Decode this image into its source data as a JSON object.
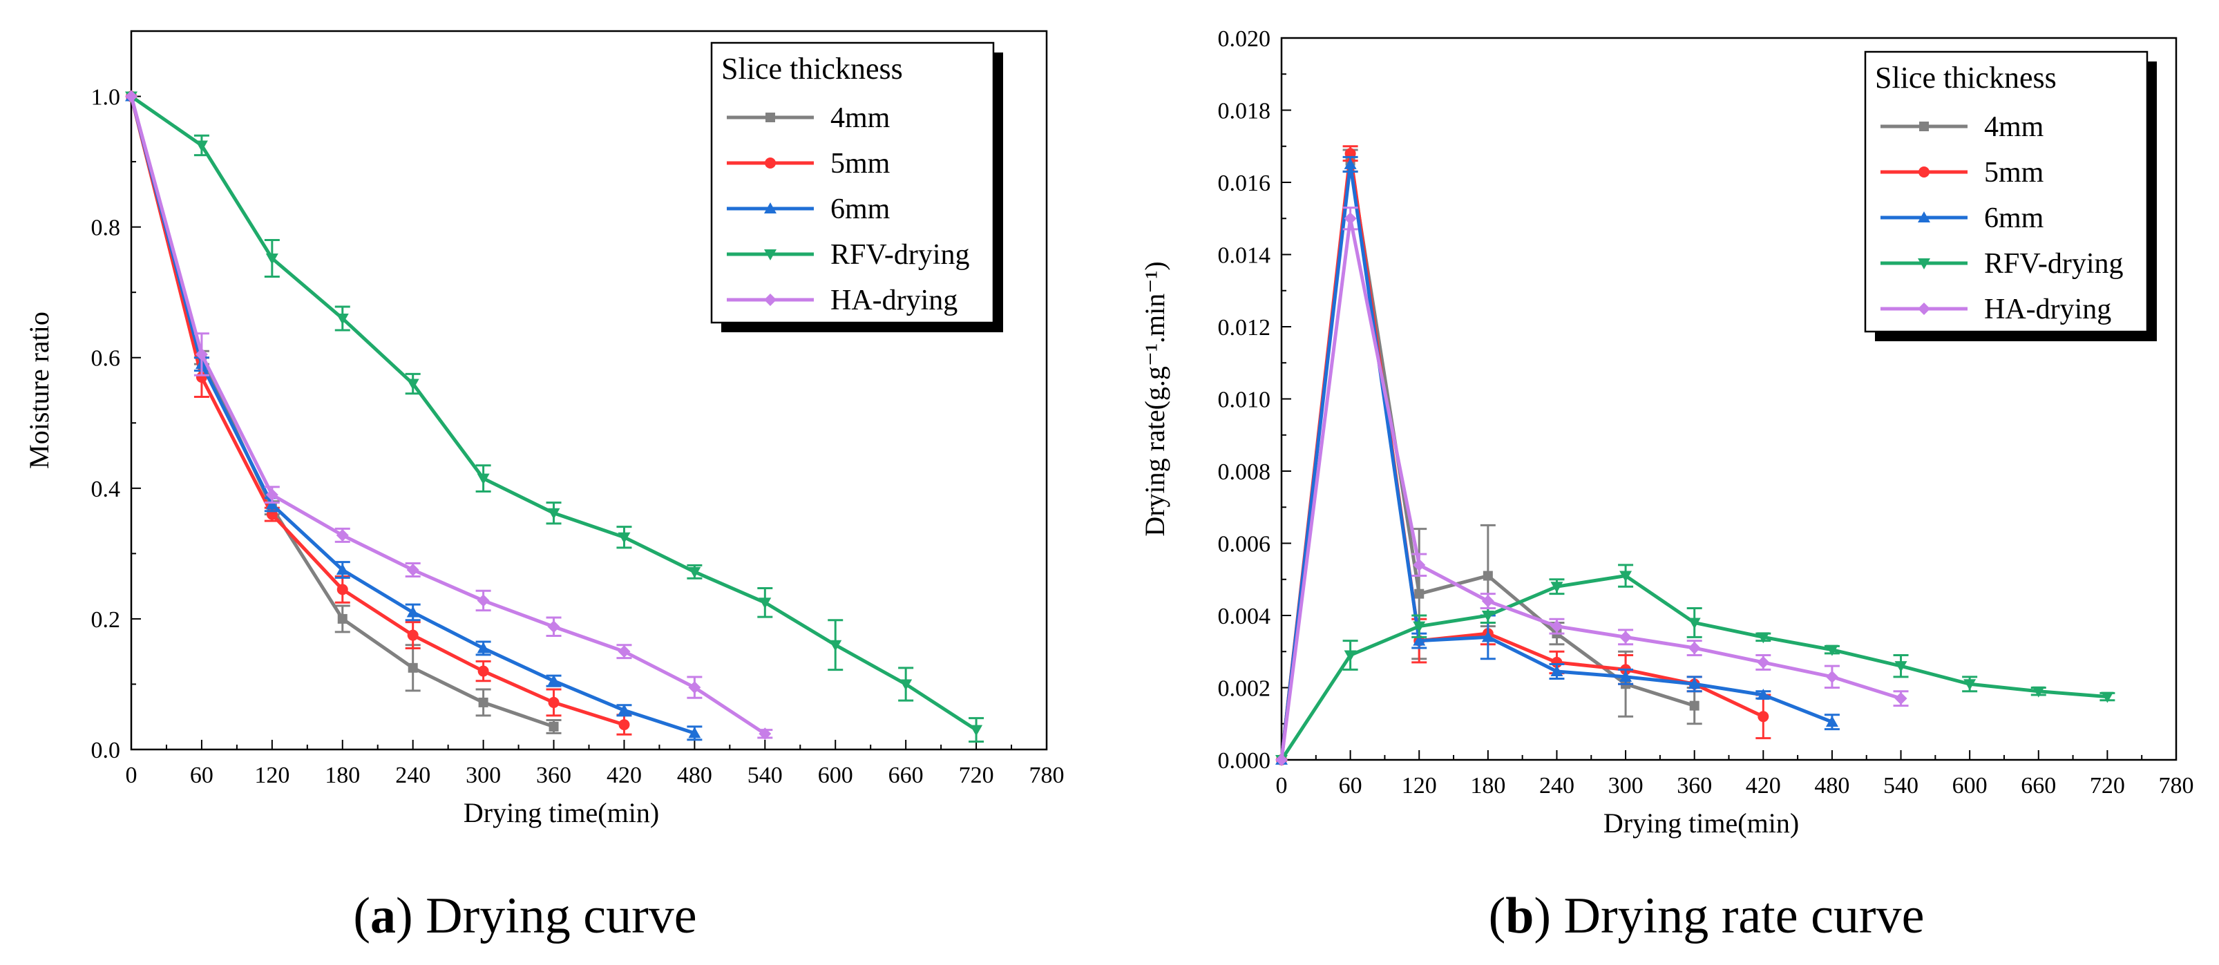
{
  "chart_data": [
    {
      "type": "line",
      "panel": "a",
      "caption_letter": "a",
      "caption_text": "Drying curve",
      "xlabel": "Drying time(min)",
      "ylabel": "Moisture ratio",
      "xlim": [
        0,
        780
      ],
      "ylim": [
        0,
        1.1
      ],
      "xticks": [
        "0",
        "60",
        "120",
        "180",
        "240",
        "300",
        "360",
        "420",
        "480",
        "540",
        "600",
        "660",
        "720",
        "780"
      ],
      "yticks": [
        "0.0",
        "0.2",
        "0.4",
        "0.6",
        "0.8",
        "1.0"
      ],
      "legend_title": "Slice thickness",
      "legend_position": "top-right",
      "series": [
        {
          "name": "4mm",
          "color": "#808080",
          "marker": "square",
          "x": [
            0,
            60,
            120,
            180,
            240,
            300,
            360
          ],
          "y": [
            1.0,
            0.6,
            0.37,
            0.2,
            0.125,
            0.072,
            0.035
          ],
          "err": [
            0,
            0.01,
            0.01,
            0.02,
            0.035,
            0.02,
            0.01
          ]
        },
        {
          "name": "5mm",
          "color": "#ff3333",
          "marker": "circle",
          "x": [
            0,
            60,
            120,
            180,
            240,
            300,
            360,
            420
          ],
          "y": [
            1.0,
            0.57,
            0.36,
            0.245,
            0.175,
            0.12,
            0.072,
            0.038
          ],
          "err": [
            0,
            0.03,
            0.01,
            0.02,
            0.02,
            0.015,
            0.02,
            0.015
          ]
        },
        {
          "name": "6mm",
          "color": "#1f6fd6",
          "marker": "triangle-up",
          "x": [
            0,
            60,
            120,
            180,
            240,
            300,
            360,
            420,
            480
          ],
          "y": [
            1.0,
            0.59,
            0.375,
            0.275,
            0.21,
            0.155,
            0.105,
            0.06,
            0.025
          ],
          "err": [
            0,
            0.01,
            0.01,
            0.012,
            0.012,
            0.01,
            0.008,
            0.008,
            0.01
          ]
        },
        {
          "name": "RFV-drying",
          "color": "#1faa6a",
          "marker": "triangle-down",
          "x": [
            0,
            60,
            120,
            180,
            240,
            300,
            360,
            420,
            480,
            540,
            600,
            660,
            720
          ],
          "y": [
            1.0,
            0.925,
            0.752,
            0.66,
            0.56,
            0.415,
            0.362,
            0.325,
            0.272,
            0.225,
            0.16,
            0.1,
            0.03
          ],
          "err": [
            0,
            0.015,
            0.028,
            0.018,
            0.015,
            0.02,
            0.016,
            0.016,
            0.01,
            0.022,
            0.038,
            0.025,
            0.018
          ]
        },
        {
          "name": "HA-drying",
          "color": "#c77ee8",
          "marker": "diamond",
          "x": [
            0,
            60,
            120,
            180,
            240,
            300,
            360,
            420,
            480,
            540
          ],
          "y": [
            1.0,
            0.605,
            0.39,
            0.328,
            0.275,
            0.228,
            0.188,
            0.15,
            0.095,
            0.024
          ],
          "err": [
            0,
            0.032,
            0.012,
            0.01,
            0.01,
            0.015,
            0.014,
            0.01,
            0.016,
            0.006
          ]
        }
      ]
    },
    {
      "type": "line",
      "panel": "b",
      "caption_letter": "b",
      "caption_text": "Drying rate curve",
      "xlabel": "Drying time(min)",
      "ylabel": "Drying rate(g.g⁻¹.min⁻¹)",
      "xlim": [
        0,
        780
      ],
      "ylim": [
        0,
        0.02
      ],
      "xticks": [
        "0",
        "60",
        "120",
        "180",
        "240",
        "300",
        "360",
        "420",
        "480",
        "540",
        "600",
        "660",
        "720",
        "780"
      ],
      "yticks": [
        "0.000",
        "0.002",
        "0.004",
        "0.006",
        "0.008",
        "0.010",
        "0.012",
        "0.014",
        "0.016",
        "0.018",
        "0.020"
      ],
      "legend_title": "Slice thickness",
      "legend_position": "top-right",
      "series": [
        {
          "name": "4mm",
          "color": "#808080",
          "marker": "square",
          "x": [
            0,
            60,
            120,
            180,
            240,
            300,
            360
          ],
          "y": [
            0,
            0.0166,
            0.0046,
            0.0051,
            0.0035,
            0.0021,
            0.0015
          ],
          "err": [
            0,
            0.0003,
            0.0018,
            0.0014,
            0.0003,
            0.0009,
            0.0005
          ]
        },
        {
          "name": "5mm",
          "color": "#ff3333",
          "marker": "circle",
          "x": [
            0,
            60,
            120,
            180,
            240,
            300,
            360,
            420
          ],
          "y": [
            0,
            0.0168,
            0.0033,
            0.0035,
            0.0027,
            0.0025,
            0.0021,
            0.0012
          ],
          "err": [
            0,
            0.0002,
            0.0006,
            0.0003,
            0.0003,
            0.0004,
            0.0002,
            0.0006
          ]
        },
        {
          "name": "6mm",
          "color": "#1f6fd6",
          "marker": "triangle-up",
          "x": [
            0,
            60,
            120,
            180,
            240,
            300,
            360,
            420,
            480
          ],
          "y": [
            0,
            0.0165,
            0.0033,
            0.0034,
            0.00245,
            0.0023,
            0.0021,
            0.0018,
            0.00105
          ],
          "err": [
            0,
            0.0002,
            0.0002,
            0.0006,
            0.0002,
            0.0002,
            0.0002,
            0.0001,
            0.0002
          ]
        },
        {
          "name": "RFV-drying",
          "color": "#1faa6a",
          "marker": "triangle-down",
          "x": [
            0,
            60,
            120,
            180,
            240,
            300,
            360,
            420,
            480,
            540,
            600,
            660,
            720
          ],
          "y": [
            0,
            0.0029,
            0.0037,
            0.004,
            0.0048,
            0.0051,
            0.0038,
            0.0034,
            0.00305,
            0.0026,
            0.0021,
            0.0019,
            0.00175
          ],
          "err": [
            0,
            0.0004,
            0.0003,
            0.0002,
            0.0002,
            0.0003,
            0.0004,
            0.0001,
            0.0001,
            0.0003,
            0.0002,
            0.0001,
            0.0001
          ]
        },
        {
          "name": "HA-drying",
          "color": "#c77ee8",
          "marker": "diamond",
          "x": [
            0,
            60,
            120,
            180,
            240,
            300,
            360,
            420,
            480,
            540
          ],
          "y": [
            0,
            0.015,
            0.0054,
            0.0044,
            0.0037,
            0.0034,
            0.0031,
            0.0027,
            0.0023,
            0.0017
          ],
          "err": [
            0,
            0.0003,
            0.0003,
            0.0002,
            0.0002,
            0.0002,
            0.0002,
            0.0002,
            0.0003,
            0.0002
          ]
        }
      ]
    }
  ]
}
